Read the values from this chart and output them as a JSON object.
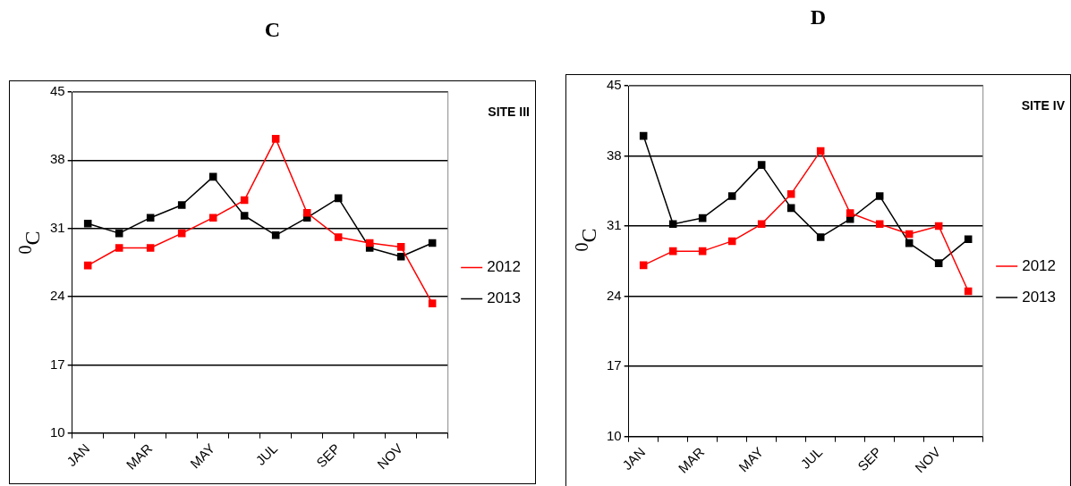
{
  "chart_data": [
    {
      "type": "line",
      "title": "C",
      "ylabel": "$^{0}$C",
      "categories": [
        "JAN",
        null,
        "MAR",
        null,
        "MAY",
        null,
        "JUL",
        null,
        "SEP",
        null,
        "NOV",
        null
      ],
      "series": [
        {
          "name": "2012",
          "color": "#ff0000",
          "values": [
            27.2,
            29.0,
            29.0,
            30.5,
            32.1,
            33.9,
            40.2,
            32.6,
            30.1,
            29.5,
            29.1,
            23.3
          ]
        },
        {
          "name": "2013",
          "color": "#000000",
          "values": [
            31.5,
            30.5,
            32.1,
            33.4,
            36.3,
            32.3,
            30.3,
            32.1,
            34.1,
            29.0,
            28.1,
            29.5
          ]
        }
      ],
      "ylim": [
        10,
        45
      ],
      "yticks": [
        10,
        17,
        24,
        31,
        38,
        45
      ],
      "grid": "y",
      "legend": "right",
      "marker": "square",
      "annotations": [
        "SITE III"
      ]
    },
    {
      "type": "line",
      "title": "D",
      "ylabel": "$^{0}$C",
      "categories": [
        "JAN",
        null,
        "MAR",
        null,
        "MAY",
        null,
        "JUL",
        null,
        "SEP",
        null,
        "NOV",
        null
      ],
      "series": [
        {
          "name": "2012",
          "color": "#ff0000",
          "values": [
            27.1,
            28.5,
            28.5,
            29.5,
            31.2,
            34.2,
            38.5,
            32.3,
            31.2,
            30.2,
            31.0,
            24.5
          ]
        },
        {
          "name": "2013",
          "color": "#000000",
          "values": [
            40.0,
            31.2,
            31.8,
            34.0,
            37.1,
            32.8,
            29.9,
            31.7,
            34.0,
            29.3,
            27.3,
            29.7
          ]
        }
      ],
      "ylim": [
        10,
        45
      ],
      "yticks": [
        10,
        17,
        24,
        31,
        38,
        45
      ],
      "grid": "y",
      "legend": "right",
      "marker": "square",
      "annotations": [
        "SITE IV"
      ]
    }
  ]
}
